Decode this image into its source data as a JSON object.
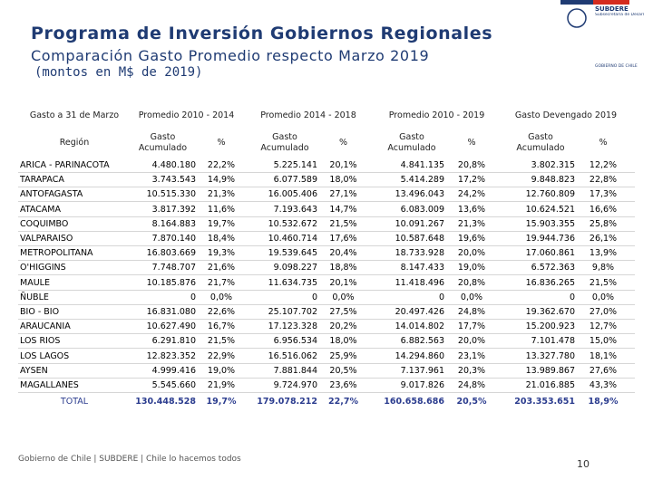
{
  "header": {
    "title": "Programa de Inversión Gobiernos Regionales",
    "subtitle": "Comparación Gasto Promedio respecto Marzo 2019",
    "note": "(montos en M$ de 2019)",
    "logo": {
      "name": "SUBDERE",
      "line": "Subsecretaría de Desarrollo Regional y Administrativo",
      "government": "GOBIERNO DE CHILE"
    }
  },
  "table": {
    "group_headers": [
      "Gasto a 31 de Marzo",
      "Promedio 2010 - 2014",
      "Promedio 2014 - 2018",
      "Promedio 2010 - 2019",
      "Gasto Devengado 2019"
    ],
    "sub_headers": [
      "Región",
      "Gasto Acumulado",
      "%",
      "Gasto Acumulado",
      "%",
      "Gasto Acumulado",
      "%",
      "Gasto Acumulado",
      "%"
    ],
    "rows": [
      [
        "ARICA - PARINACOTA",
        "4.480.180",
        "22,2%",
        "5.225.141",
        "20,1%",
        "4.841.135",
        "20,8%",
        "3.802.315",
        "12,2%"
      ],
      [
        "TARAPACA",
        "3.743.543",
        "14,9%",
        "6.077.589",
        "18,0%",
        "5.414.289",
        "17,2%",
        "9.848.823",
        "22,8%"
      ],
      [
        "ANTOFAGASTA",
        "10.515.330",
        "21,3%",
        "16.005.406",
        "27,1%",
        "13.496.043",
        "24,2%",
        "12.760.809",
        "17,3%"
      ],
      [
        "ATACAMA",
        "3.817.392",
        "11,6%",
        "7.193.643",
        "14,7%",
        "6.083.009",
        "13,6%",
        "10.624.521",
        "16,6%"
      ],
      [
        "COQUIMBO",
        "8.164.883",
        "19,7%",
        "10.532.672",
        "21,5%",
        "10.091.267",
        "21,3%",
        "15.903.355",
        "25,8%"
      ],
      [
        "VALPARAISO",
        "7.870.140",
        "18,4%",
        "10.460.714",
        "17,6%",
        "10.587.648",
        "19,6%",
        "19.944.736",
        "26,1%"
      ],
      [
        "METROPOLITANA",
        "16.803.669",
        "19,3%",
        "19.539.645",
        "20,4%",
        "18.733.928",
        "20,0%",
        "17.060.861",
        "13,9%"
      ],
      [
        "O'HIGGINS",
        "7.748.707",
        "21,6%",
        "9.098.227",
        "18,8%",
        "8.147.433",
        "19,0%",
        "6.572.363",
        "9,8%"
      ],
      [
        "MAULE",
        "10.185.876",
        "21,7%",
        "11.634.735",
        "20,1%",
        "11.418.496",
        "20,8%",
        "16.836.265",
        "21,5%"
      ],
      [
        "ÑUBLE",
        "0",
        "0,0%",
        "0",
        "0,0%",
        "0",
        "0,0%",
        "0",
        "0,0%"
      ],
      [
        "BIO - BIO",
        "16.831.080",
        "22,6%",
        "25.107.702",
        "27,5%",
        "20.497.426",
        "24,8%",
        "19.362.670",
        "27,0%"
      ],
      [
        "ARAUCANIA",
        "10.627.490",
        "16,7%",
        "17.123.328",
        "20,2%",
        "14.014.802",
        "17,7%",
        "15.200.923",
        "12,7%"
      ],
      [
        "LOS RIOS",
        "6.291.810",
        "21,5%",
        "6.956.534",
        "18,0%",
        "6.882.563",
        "20,0%",
        "7.101.478",
        "15,0%"
      ],
      [
        "LOS LAGOS",
        "12.823.352",
        "22,9%",
        "16.516.062",
        "25,9%",
        "14.294.860",
        "23,1%",
        "13.327.780",
        "18,1%"
      ],
      [
        "AYSEN",
        "4.999.416",
        "19,0%",
        "7.881.844",
        "20,5%",
        "7.137.961",
        "20,3%",
        "13.989.867",
        "27,6%"
      ],
      [
        "MAGALLANES",
        "5.545.660",
        "21,9%",
        "9.724.970",
        "23,6%",
        "9.017.826",
        "24,8%",
        "21.016.885",
        "43,3%"
      ]
    ],
    "total": [
      "TOTAL",
      "130.448.528",
      "19,7%",
      "179.078.212",
      "22,7%",
      "160.658.686",
      "20,5%",
      "203.353.651",
      "18,9%"
    ]
  },
  "footer": {
    "text": "Gobierno de Chile | SUBDERE | Chile lo hacemos todos",
    "page": "10"
  }
}
